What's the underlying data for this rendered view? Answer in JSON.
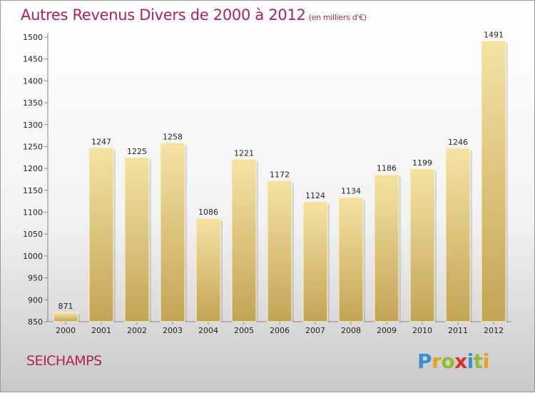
{
  "title": "Autres Revenus Divers de 2000 à 2012",
  "subtitle": "(en milliers d'€)",
  "city": "SEICHAMPS",
  "logo": {
    "letters": [
      "P",
      "r",
      "o",
      "x",
      "i",
      "t",
      "i"
    ],
    "colors": [
      "#3b8fd4",
      "#e8a21c",
      "#8bbf2f",
      "#d9312b",
      "#3b8fd4",
      "#8bbf2f",
      "#e8a21c"
    ]
  },
  "colors": {
    "bar_top": "#f5e3a3",
    "bar_bottom": "#c4a456",
    "title": "#b0244f"
  },
  "chart_data": {
    "type": "bar",
    "categories": [
      "2000",
      "2001",
      "2002",
      "2003",
      "2004",
      "2005",
      "2006",
      "2007",
      "2008",
      "2009",
      "2010",
      "2011",
      "2012"
    ],
    "values": [
      871,
      1247,
      1225,
      1258,
      1086,
      1221,
      1172,
      1124,
      1134,
      1186,
      1199,
      1246,
      1491
    ],
    "ylim": [
      850,
      1500
    ],
    "yticks": [
      850,
      900,
      950,
      1000,
      1050,
      1100,
      1150,
      1200,
      1250,
      1300,
      1350,
      1400,
      1450,
      1500
    ],
    "grid": false
  }
}
